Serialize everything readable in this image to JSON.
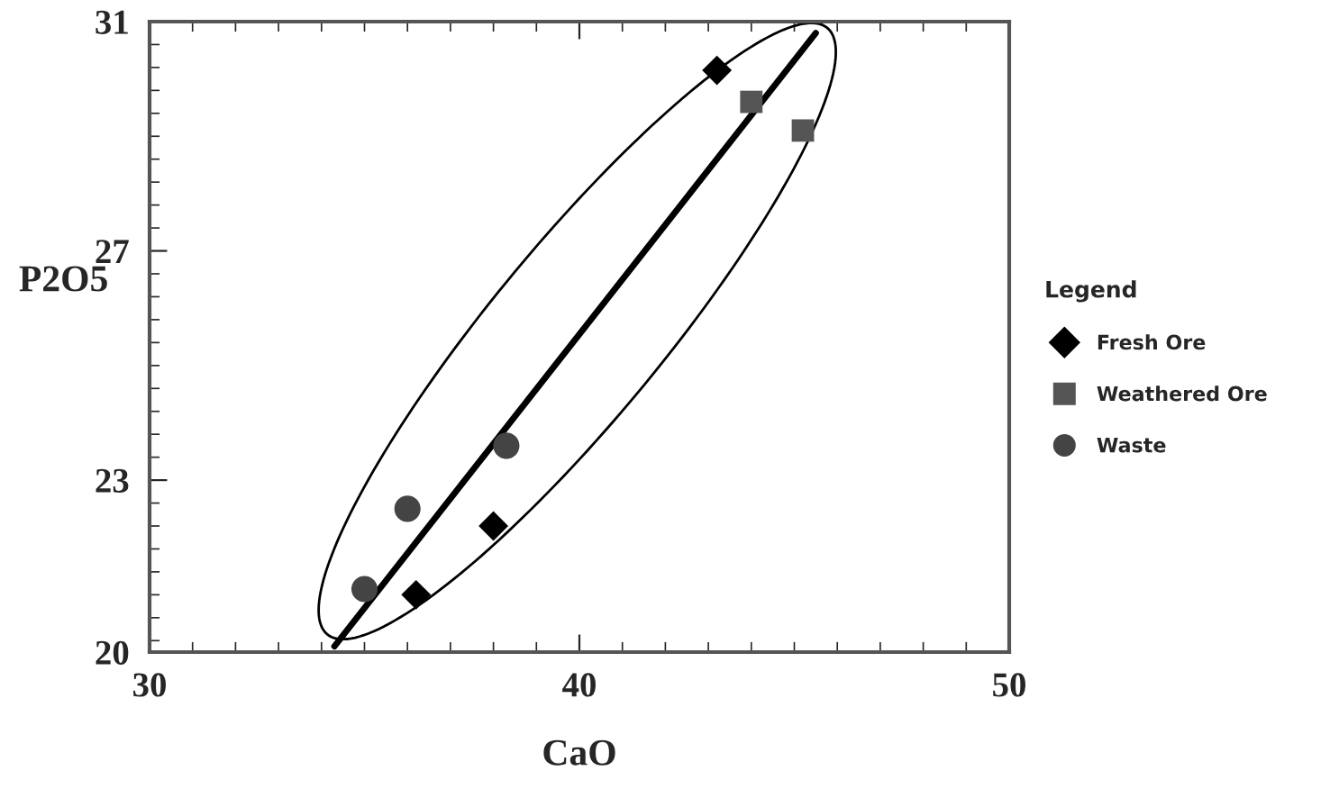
{
  "chart_data": {
    "type": "scatter",
    "xlabel": "CaO",
    "ylabel": "P2O5",
    "legend_title": "Legend",
    "xlim": [
      30,
      50
    ],
    "xticks": [
      30,
      40,
      50
    ],
    "ylim": [
      20,
      31
    ],
    "yticks": [
      20,
      23,
      27,
      31
    ],
    "legend": "right",
    "grid": false,
    "series": [
      {
        "name": "Fresh Ore",
        "color": "#000000",
        "marker": "diamond",
        "x": [
          43.2,
          36.2,
          38.0
        ],
        "values": [
          30.15,
          21.0,
          22.2
        ]
      },
      {
        "name": "Weathered Ore",
        "color": "#555555",
        "marker": "square",
        "x": [
          44.0,
          45.2
        ],
        "values": [
          29.6,
          29.1
        ]
      },
      {
        "name": "Waste",
        "color": "#444444",
        "marker": "circle",
        "x": [
          35.0,
          36.0,
          38.3
        ],
        "values": [
          21.1,
          22.5,
          23.6
        ]
      },
      {
        "type": "line",
        "color": "#000000",
        "marker": "none",
        "x": [
          34.3,
          45.5
        ],
        "values": [
          20.1,
          30.8
        ]
      }
    ]
  }
}
